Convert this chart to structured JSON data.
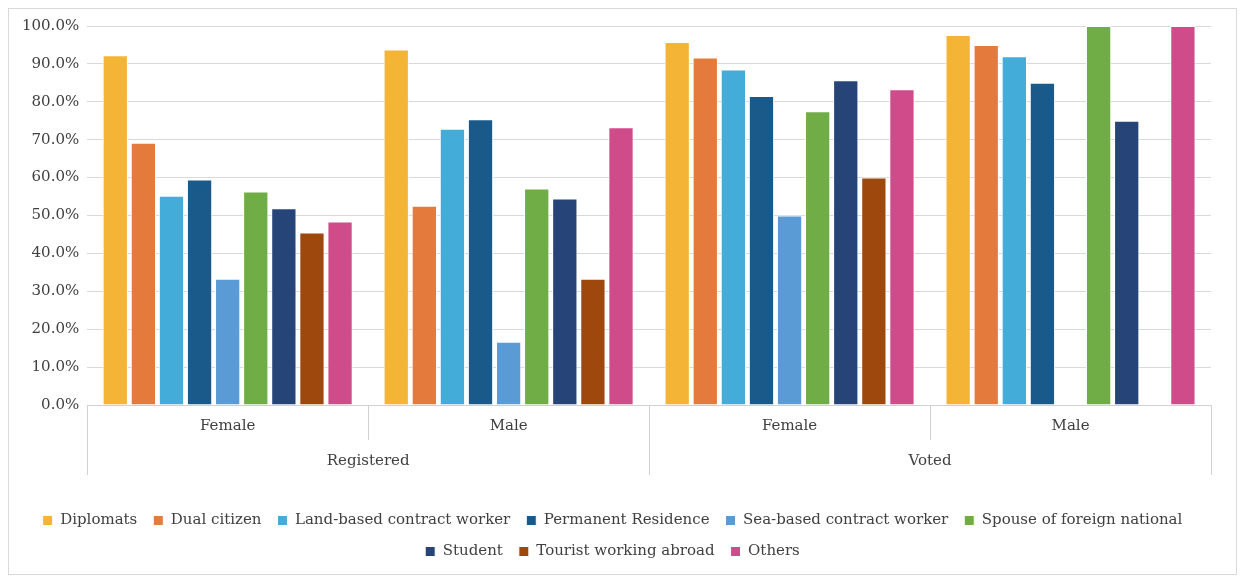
{
  "chart_data": {
    "type": "bar",
    "categories": [
      "Female",
      "Male",
      "Female",
      "Male"
    ],
    "series": [
      {
        "name": "Diplomats",
        "color": "#f4b536",
        "values": [
          92.3,
          93.8,
          95.8,
          97.6
        ]
      },
      {
        "name": "Dual citizen",
        "color": "#e57a3d",
        "values": [
          69.2,
          52.6,
          91.7,
          95.0
        ]
      },
      {
        "name": "Land-based contract worker",
        "color": "#43acd8",
        "values": [
          55.2,
          72.9,
          88.5,
          92.0
        ]
      },
      {
        "name": "Permanent Residence",
        "color": "#1a5a8a",
        "values": [
          59.5,
          75.4,
          81.5,
          85.0
        ]
      },
      {
        "name": "Sea-based contract worker",
        "color": "#5b9bd5",
        "values": [
          33.3,
          16.7,
          50.0,
          null
        ]
      },
      {
        "name": "Spouse of foreign national",
        "color": "#70ad47",
        "values": [
          56.3,
          57.1,
          77.5,
          100.0
        ]
      },
      {
        "name": "Student",
        "color": "#264478",
        "values": [
          51.9,
          54.5,
          85.7,
          75.0
        ]
      },
      {
        "name": "Tourist working abroad",
        "color": "#9e480e",
        "values": [
          45.5,
          33.3,
          60.0,
          null
        ]
      },
      {
        "name": "Others",
        "color": "#d04b8a",
        "values": [
          48.4,
          73.3,
          83.3,
          100.0
        ]
      }
    ],
    "annotations": [
      "Registered",
      "Voted"
    ],
    "ylim": [
      0,
      100
    ],
    "yticks": [
      {
        "value": 0,
        "label": "0.0%"
      },
      {
        "value": 10,
        "label": "10.0%"
      },
      {
        "value": 20,
        "label": "20.0%"
      },
      {
        "value": 30,
        "label": "30.0%"
      },
      {
        "value": 40,
        "label": "40.0%"
      },
      {
        "value": 50,
        "label": "50.0%"
      },
      {
        "value": 60,
        "label": "60.0%"
      },
      {
        "value": 70,
        "label": "70.0%"
      },
      {
        "value": 80,
        "label": "80.0%"
      },
      {
        "value": 90,
        "label": "90.0%"
      },
      {
        "value": 100,
        "label": "100.0%"
      }
    ],
    "grid": "y",
    "legend": "bottom"
  }
}
